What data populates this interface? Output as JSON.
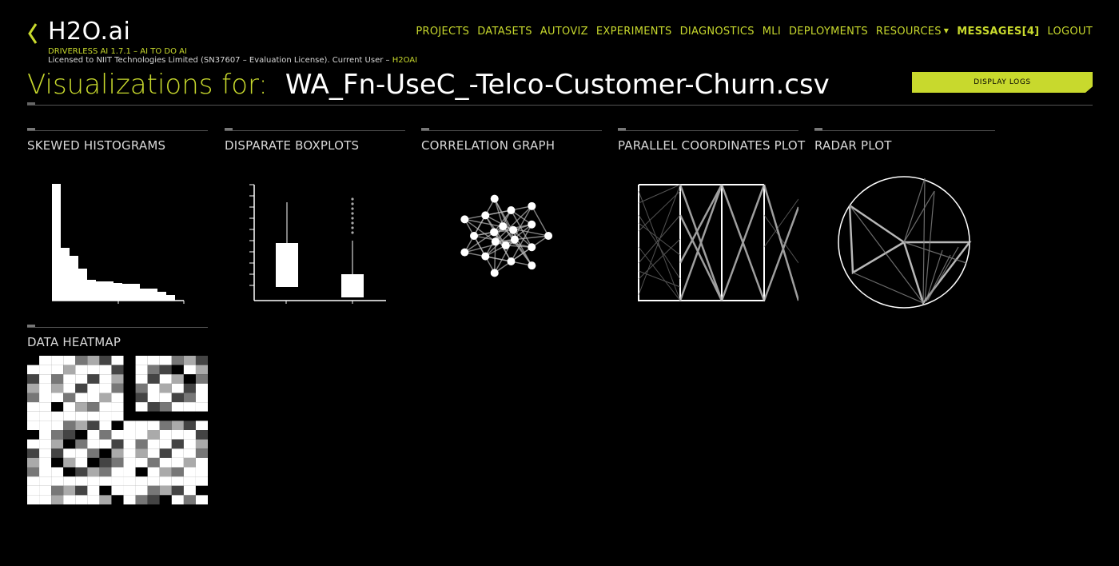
{
  "brand": {
    "logo": "H2O.ai",
    "version_line": "DRIVERLESS AI 1.7.1 – AI TO DO AI",
    "license_line": "Licensed to NIIT Technologies Limited (SN37607 – Evaluation License). Current User –",
    "current_user": "H2OAI"
  },
  "nav": {
    "items": [
      "PROJECTS",
      "DATASETS",
      "AUTOVIZ",
      "EXPERIMENTS",
      "DIAGNOSTICS",
      "MLI",
      "DEPLOYMENTS",
      "RESOURCES"
    ],
    "messages": "MESSAGES[4]",
    "logout": "LOGOUT"
  },
  "page": {
    "title_label": "Visualizations for:",
    "dataset": "WA_Fn-UseC_-Telco-Customer-Churn.csv",
    "display_logs": "DISPLAY LOGS"
  },
  "cards": [
    {
      "title": "SKEWED HISTOGRAMS"
    },
    {
      "title": "DISPARATE BOXPLOTS"
    },
    {
      "title": "CORRELATION GRAPH"
    },
    {
      "title": "PARALLEL COORDINATES PLOT"
    },
    {
      "title": "RADAR PLOT"
    },
    {
      "title": "DATA HEATMAP"
    }
  ],
  "colors": {
    "accent": "#c8d92d",
    "background": "#000000",
    "text": "#e6e6e6"
  },
  "icons": {
    "back": "chevron-left-icon",
    "resources_menu": "caret-down-icon"
  }
}
